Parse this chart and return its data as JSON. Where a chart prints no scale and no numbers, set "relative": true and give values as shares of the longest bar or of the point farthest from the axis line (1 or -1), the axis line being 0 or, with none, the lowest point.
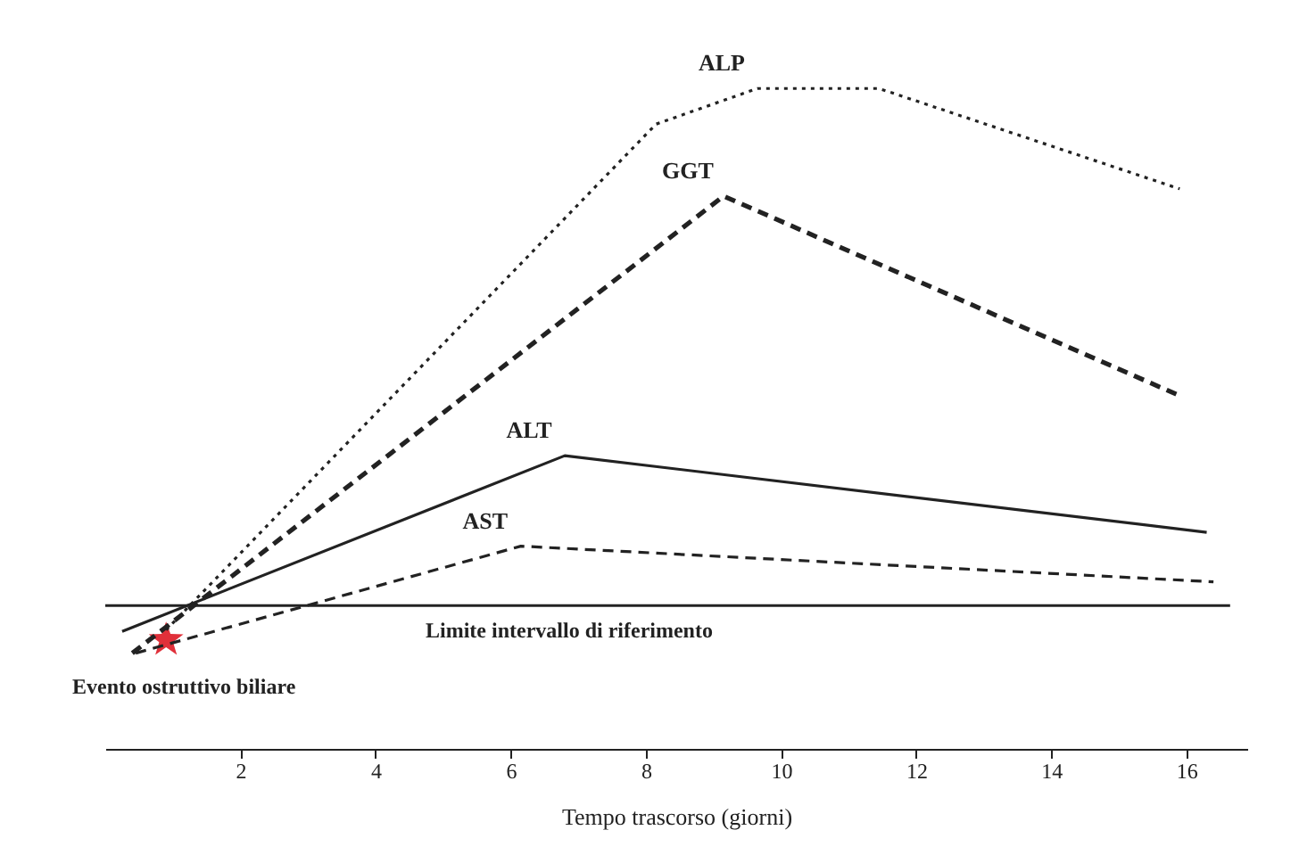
{
  "chart_data": {
    "type": "line",
    "relative": true,
    "xlabel": "Tempo trascorso (giorni)",
    "xlim": [
      0,
      16.9
    ],
    "xticks": [
      2,
      4,
      6,
      8,
      10,
      12,
      14,
      16
    ],
    "grid": false,
    "marker": "none",
    "series": [
      {
        "name": "ALP",
        "color": "#222222",
        "line_style": "dotted",
        "x": [
          0.9,
          8.15,
          9.65,
          11.45,
          15.9
        ],
        "values": [
          0.18,
          0.946,
          1,
          1,
          0.848
        ]
      },
      {
        "name": "GGT",
        "color": "#222222",
        "line_style": "dashed",
        "x": [
          0.4,
          9.15,
          15.85
        ],
        "values": [
          0.145,
          0.837,
          0.537
        ]
      },
      {
        "name": "ALT",
        "color": "#222222",
        "line_style": "solid",
        "x": [
          0.25,
          6.8,
          16.3
        ],
        "values": [
          0.178,
          0.444,
          0.328
        ]
      },
      {
        "name": "AST",
        "color": "#222222",
        "line_style": "dashed",
        "x": [
          0.45,
          6.15,
          16.4
        ],
        "values": [
          0.145,
          0.307,
          0.253
        ]
      }
    ],
    "ref_lines": [
      {
        "axis": "y",
        "value": 0.217,
        "label": "Limite intervallo di riferimento",
        "color": "#222222"
      }
    ],
    "annotations": [
      {
        "text": "Evento ostruttivo biliare",
        "x": 0.9,
        "y": 0.165
      }
    ]
  }
}
